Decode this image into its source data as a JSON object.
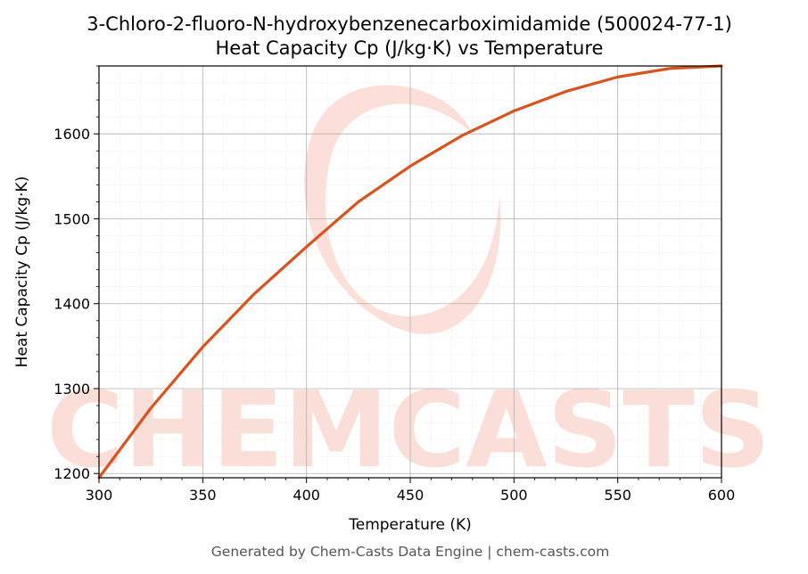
{
  "chart_data": {
    "type": "line",
    "title": "3-Chloro-2-fluoro-N-hydroxybenzenecarboximidamide (500024-77-1)",
    "subtitle": "Heat Capacity Cp (J/kg·K) vs Temperature",
    "xlabel": "Temperature (K)",
    "ylabel": "Heat Capacity Cp (J/kg·K)",
    "xlim": [
      300,
      600
    ],
    "ylim": [
      1195,
      1680
    ],
    "x_ticks": [
      300,
      350,
      400,
      450,
      500,
      550,
      600
    ],
    "y_ticks": [
      1200,
      1300,
      1400,
      1500,
      1600
    ],
    "grid": true,
    "minor_grid": true,
    "series": [
      {
        "color": "#d9531e",
        "x": [
          300,
          325,
          350,
          375,
          400,
          425,
          450,
          475,
          500,
          525,
          550,
          575,
          600
        ],
        "y": [
          1195,
          1277,
          1349,
          1412,
          1467,
          1520,
          1562,
          1598,
          1627,
          1650,
          1667,
          1677,
          1680
        ]
      }
    ],
    "watermark": "CHEMCASTS",
    "watermark_color": "#fcd9d2"
  },
  "footer": "Generated by Chem-Casts Data Engine | chem-casts.com"
}
